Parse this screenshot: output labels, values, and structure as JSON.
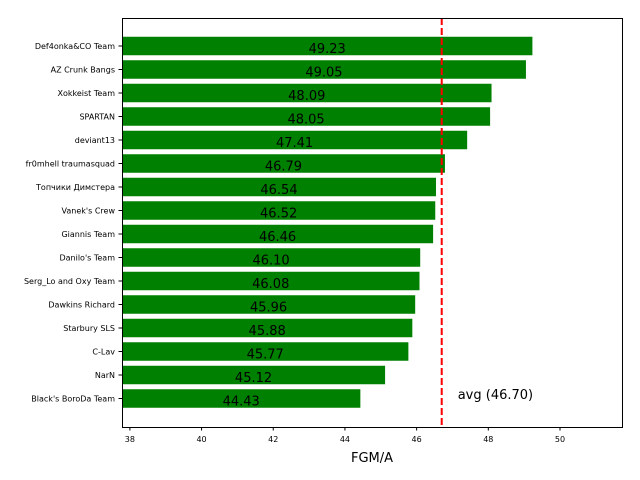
{
  "chart_data": {
    "type": "bar",
    "orientation": "horizontal",
    "title": "",
    "xlabel": "FGM/A",
    "ylabel": "",
    "xlim": [
      37.78,
      51.73
    ],
    "xticks": [
      38,
      40,
      42,
      44,
      46,
      48,
      50
    ],
    "grid": false,
    "bar_color": "#008000",
    "categories": [
      "Def4onka&CO Team",
      "AZ Crunk Bangs",
      "Xokkeist Team",
      "SPARTAN",
      "deviant13",
      "fr0mhell traumasquad",
      "Топчики Димстера",
      "Vanek's Crew",
      "Giannis Team",
      "Danilo's Team",
      "Serg_Lo and Oxy Team",
      "Dawkins Richard",
      "Starbury SLS",
      "C-Lav",
      "NarN",
      "Black's BoroDa Team"
    ],
    "values": [
      49.23,
      49.05,
      48.09,
      48.05,
      47.41,
      46.79,
      46.54,
      46.52,
      46.46,
      46.1,
      46.08,
      45.96,
      45.88,
      45.77,
      45.12,
      44.43
    ],
    "value_labels": [
      "49.23",
      "49.05",
      "48.09",
      "48.05",
      "47.41",
      "46.79",
      "46.54",
      "46.52",
      "46.46",
      "46.10",
      "46.08",
      "45.96",
      "45.88",
      "45.77",
      "45.12",
      "44.43"
    ],
    "reference_line": {
      "value": 46.7,
      "label": "avg (46.70)",
      "color": "#ff0000",
      "style": "dashed"
    }
  }
}
